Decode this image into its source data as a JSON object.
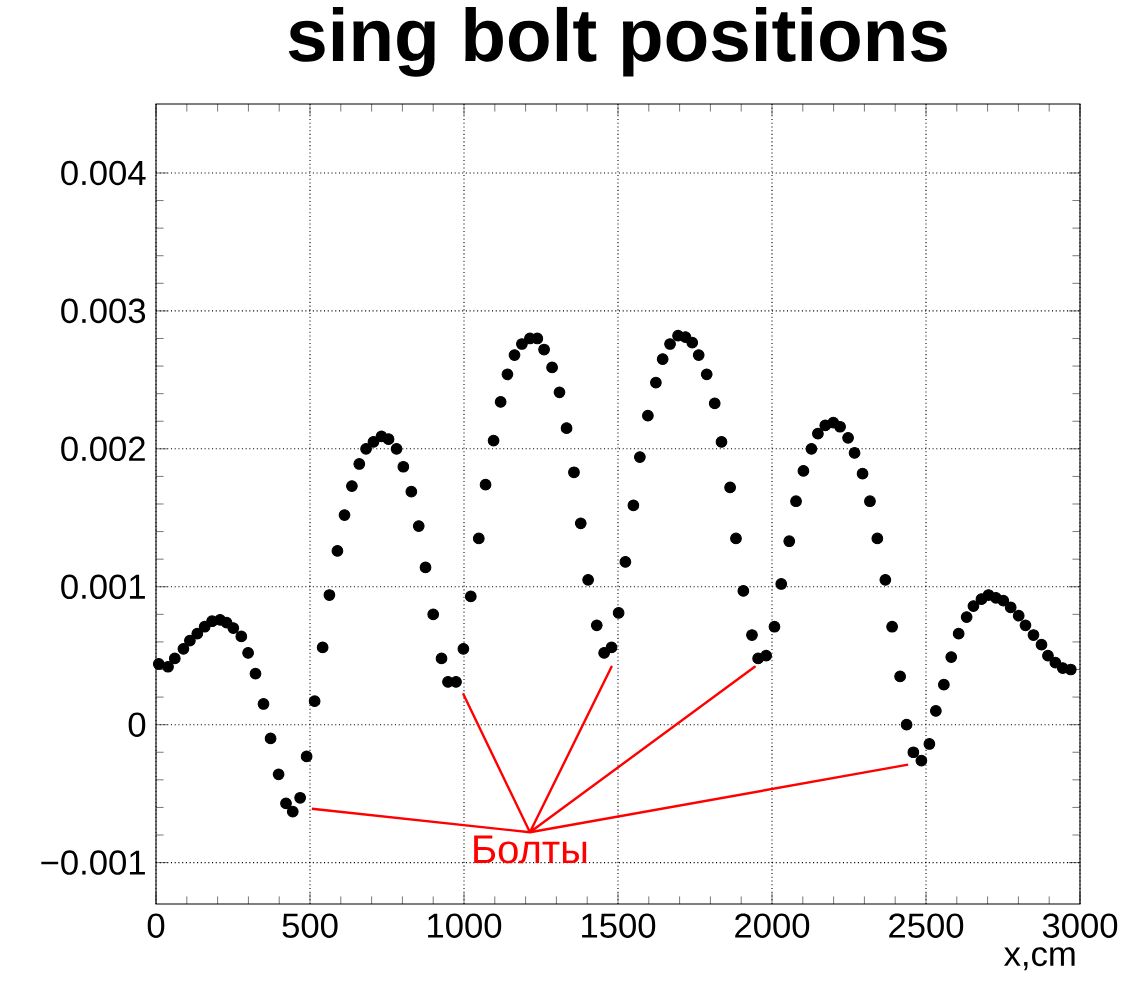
{
  "chart_data": {
    "type": "scatter",
    "title": "sing bolt positions",
    "xlabel": "x,cm",
    "xlim": [
      0,
      3000
    ],
    "ylim": [
      -0.0013,
      0.0045
    ],
    "xticks": [
      0,
      500,
      1000,
      1500,
      2000,
      2500,
      3000
    ],
    "yticks": [
      {
        "value": -0.001,
        "label": "−0.001"
      },
      0,
      0.001,
      0.002,
      0.003,
      0.004
    ],
    "grid": true,
    "annotations": [
      "Болты"
    ],
    "series": [
      {
        "marker": "circle",
        "color": "#000000",
        "x": [
          9,
          39,
          61,
          89,
          110,
          134,
          158,
          182,
          208,
          229,
          251,
          277,
          299,
          323,
          349,
          372,
          398,
          422,
          444,
          468,
          489,
          515,
          541,
          563,
          589,
          612,
          636,
          660,
          682,
          706,
          732,
          755,
          781,
          803,
          829,
          853,
          875,
          900,
          927,
          948,
          974,
          998,
          1022,
          1048,
          1070,
          1096,
          1119,
          1141,
          1164,
          1188,
          1214,
          1238,
          1260,
          1286,
          1310,
          1333,
          1357,
          1379,
          1403,
          1431,
          1455,
          1479,
          1502,
          1524,
          1550,
          1571,
          1597,
          1623,
          1645,
          1669,
          1695,
          1719,
          1741,
          1762,
          1788,
          1814,
          1836,
          1864,
          1883,
          1907,
          1935,
          1955,
          1981,
          2008,
          2030,
          2056,
          2078,
          2102,
          2128,
          2149,
          2173,
          2199,
          2221,
          2247,
          2268,
          2294,
          2318,
          2342,
          2368,
          2390,
          2416,
          2437,
          2459,
          2485,
          2511,
          2532,
          2558,
          2582,
          2606,
          2632,
          2654,
          2680,
          2703,
          2727,
          2751,
          2775,
          2801,
          2823,
          2849,
          2875,
          2896,
          2920,
          2944,
          2970
        ],
        "values": [
          0.00044,
          0.00042,
          0.00048,
          0.00055,
          0.00061,
          0.00066,
          0.00071,
          0.00075,
          0.00076,
          0.00074,
          0.0007,
          0.00064,
          0.00052,
          0.00037,
          0.00015,
          -0.0001,
          -0.00036,
          -0.00057,
          -0.00063,
          -0.00053,
          -0.00023,
          0.00017,
          0.00056,
          0.00094,
          0.00126,
          0.00152,
          0.00173,
          0.00189,
          0.002,
          0.00205,
          0.00209,
          0.00207,
          0.002,
          0.00187,
          0.00169,
          0.00144,
          0.00114,
          0.0008,
          0.00048,
          0.00031,
          0.00031,
          0.00055,
          0.00093,
          0.00135,
          0.00174,
          0.00206,
          0.00234,
          0.00254,
          0.00268,
          0.00276,
          0.0028,
          0.0028,
          0.00272,
          0.00259,
          0.00241,
          0.00215,
          0.00183,
          0.00146,
          0.00105,
          0.00072,
          0.00052,
          0.00056,
          0.00081,
          0.00118,
          0.00159,
          0.00194,
          0.00224,
          0.00248,
          0.00265,
          0.00276,
          0.00282,
          0.00281,
          0.00277,
          0.00268,
          0.00254,
          0.00233,
          0.00205,
          0.00172,
          0.00135,
          0.00097,
          0.00065,
          0.00048,
          0.0005,
          0.00071,
          0.00102,
          0.00133,
          0.00162,
          0.00184,
          0.002,
          0.00211,
          0.00217,
          0.00219,
          0.00216,
          0.00208,
          0.00197,
          0.00182,
          0.00162,
          0.00135,
          0.00105,
          0.00071,
          0.00035,
          0,
          -0.0002,
          -0.00026,
          -0.00014,
          0.0001,
          0.00029,
          0.00049,
          0.00066,
          0.00078,
          0.00086,
          0.00091,
          0.00094,
          0.00092,
          0.0009,
          0.00085,
          0.00079,
          0.00072,
          0.00065,
          0.00058,
          0.0005,
          0.00045,
          0.00041,
          0.0004
        ]
      },
      {
        "type": "line",
        "marker": "none",
        "color": "#ff0000",
        "x": [
          506,
          1214,
          998,
          1214,
          1479,
          1214,
          1944,
          1214,
          2442
        ],
        "values": [
          -0.00061,
          -0.00078,
          0.00022,
          -0.00078,
          0.00042,
          -0.00078,
          0.00042,
          -0.00078,
          -0.00029
        ]
      }
    ]
  }
}
